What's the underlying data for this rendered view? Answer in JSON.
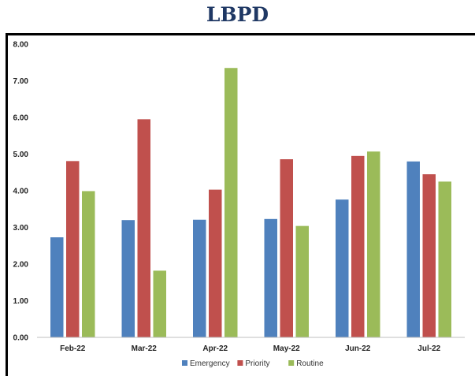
{
  "chart_data": {
    "type": "bar",
    "title": "LBPD",
    "categories": [
      "Feb-22",
      "Mar-22",
      "Apr-22",
      "May-22",
      "Jun-22",
      "Jul-22"
    ],
    "series": [
      {
        "name": "Emergency",
        "color": "#4f81bd",
        "values": [
          2.73,
          3.2,
          3.21,
          3.23,
          3.76,
          4.8
        ]
      },
      {
        "name": "Priority",
        "color": "#c0504d",
        "values": [
          4.81,
          5.95,
          4.03,
          4.86,
          4.95,
          4.45
        ]
      },
      {
        "name": "Routine",
        "color": "#9bbb59",
        "values": [
          3.99,
          1.82,
          7.35,
          3.04,
          5.07,
          4.25
        ]
      }
    ],
    "yticks": [
      "0.00",
      "1.00",
      "2.00",
      "3.00",
      "4.00",
      "5.00",
      "6.00",
      "7.00",
      "8.00"
    ],
    "ylim": [
      0,
      8
    ],
    "grid": false,
    "legend": "bottom"
  }
}
